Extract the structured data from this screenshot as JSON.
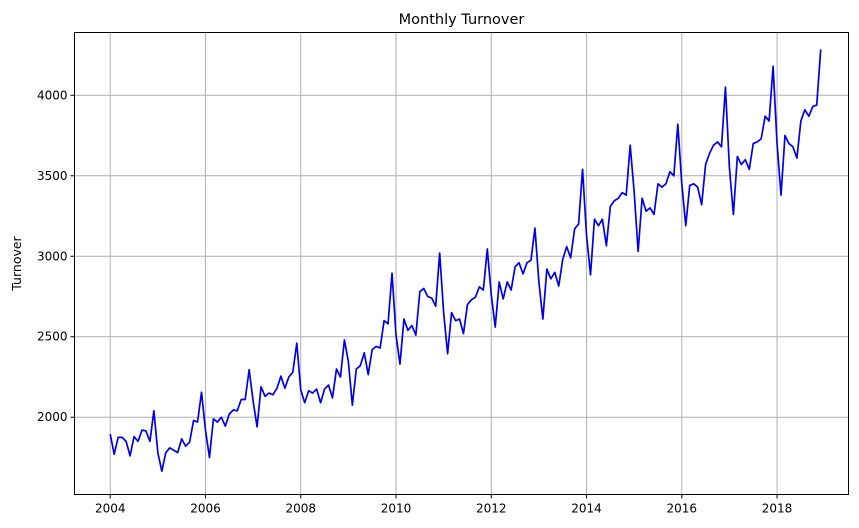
{
  "chart_data": {
    "type": "line",
    "title": "Monthly Turnover",
    "xlabel": "",
    "ylabel": "Turnover",
    "grid": true,
    "xlim": [
      2003.25,
      2019.5
    ],
    "ylim": [
      1520,
      4390
    ],
    "xticks": [
      2004,
      2006,
      2008,
      2010,
      2012,
      2014,
      2016,
      2018
    ],
    "xtick_labels": [
      "2004",
      "2006",
      "2008",
      "2010",
      "2012",
      "2014",
      "2016",
      "2018"
    ],
    "yticks": [
      2000,
      2500,
      3000,
      3500,
      4000
    ],
    "ytick_labels": [
      "2000",
      "2500",
      "3000",
      "3500",
      "4000"
    ],
    "series": [
      {
        "color": "#0000ee",
        "x_start": "2004-01",
        "frequency": "monthly",
        "values": [
          1895,
          1770,
          1875,
          1875,
          1850,
          1760,
          1880,
          1850,
          1920,
          1915,
          1850,
          2040,
          1780,
          1665,
          1780,
          1810,
          1795,
          1780,
          1865,
          1820,
          1845,
          1980,
          1970,
          2155,
          1920,
          1750,
          1990,
          1970,
          2000,
          1945,
          2020,
          2045,
          2040,
          2110,
          2110,
          2295,
          2100,
          1940,
          2190,
          2130,
          2150,
          2140,
          2180,
          2255,
          2180,
          2250,
          2280,
          2460,
          2170,
          2090,
          2165,
          2150,
          2175,
          2090,
          2175,
          2200,
          2120,
          2300,
          2250,
          2480,
          2345,
          2075,
          2300,
          2320,
          2400,
          2265,
          2420,
          2440,
          2430,
          2600,
          2580,
          2895,
          2510,
          2330,
          2610,
          2540,
          2570,
          2510,
          2780,
          2800,
          2750,
          2740,
          2690,
          3020,
          2650,
          2395,
          2650,
          2600,
          2610,
          2520,
          2700,
          2730,
          2745,
          2810,
          2790,
          3045,
          2760,
          2560,
          2840,
          2735,
          2840,
          2790,
          2935,
          2960,
          2890,
          2960,
          2975,
          3175,
          2840,
          2610,
          2920,
          2860,
          2900,
          2815,
          2980,
          3060,
          2990,
          3170,
          3200,
          3540,
          3130,
          2885,
          3230,
          3190,
          3230,
          3065,
          3310,
          3345,
          3360,
          3395,
          3380,
          3690,
          3400,
          3030,
          3360,
          3280,
          3300,
          3260,
          3450,
          3430,
          3450,
          3525,
          3500,
          3820,
          3450,
          3190,
          3440,
          3450,
          3430,
          3320,
          3570,
          3640,
          3690,
          3710,
          3680,
          4050,
          3550,
          3260,
          3620,
          3570,
          3600,
          3540,
          3700,
          3710,
          3730,
          3870,
          3840,
          4180,
          3700,
          3380,
          3750,
          3700,
          3680,
          3610,
          3840,
          3910,
          3870,
          3930,
          3940,
          4285
        ]
      }
    ]
  }
}
